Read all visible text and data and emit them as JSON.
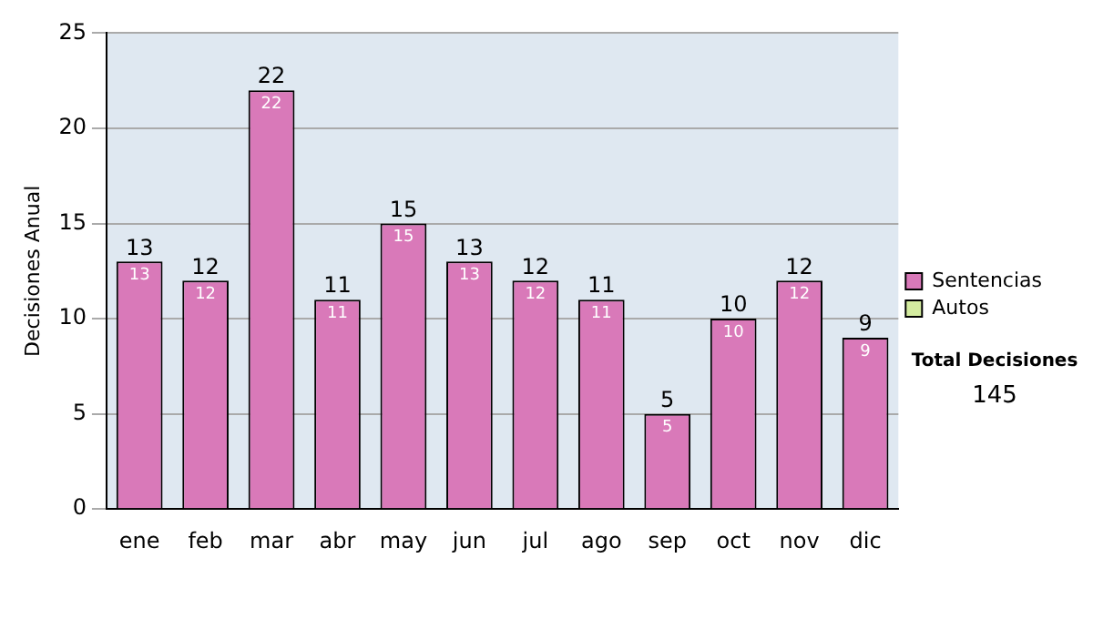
{
  "chart_data": {
    "type": "bar",
    "ylabel": "Decisiones Anual",
    "categories": [
      "ene",
      "feb",
      "mar",
      "abr",
      "may",
      "jun",
      "jul",
      "ago",
      "sep",
      "oct",
      "nov",
      "dic"
    ],
    "series": [
      {
        "name": "Sentencias",
        "color": "#d979b9",
        "values": [
          13,
          12,
          22,
          11,
          15,
          13,
          12,
          11,
          5,
          10,
          12,
          9
        ]
      },
      {
        "name": "Autos",
        "color": "#d4eca0",
        "values": [
          null,
          null,
          null,
          null,
          null,
          null,
          null,
          null,
          null,
          null,
          null,
          null
        ]
      }
    ],
    "ylim": [
      0,
      25
    ],
    "yticks": [
      0,
      5,
      10,
      15,
      20,
      25
    ],
    "grid": "y",
    "legend": "right",
    "data_labels": true,
    "annotations": [
      "Total Decisiones",
      "145",
      {
        "text": "13",
        "x": "ene",
        "y": 13
      },
      {
        "text": "12",
        "x": "feb",
        "y": 12
      },
      {
        "text": "22",
        "x": "mar",
        "y": 22
      },
      {
        "text": "11",
        "x": "abr",
        "y": 11
      },
      {
        "text": "15",
        "x": "may",
        "y": 15
      },
      {
        "text": "13",
        "x": "jun",
        "y": 13
      },
      {
        "text": "12",
        "x": "jul",
        "y": 12
      },
      {
        "text": "11",
        "x": "ago",
        "y": 11
      },
      {
        "text": "5",
        "x": "sep",
        "y": 5
      },
      {
        "text": "10",
        "x": "oct",
        "y": 10
      },
      {
        "text": "12",
        "x": "nov",
        "y": 12
      },
      {
        "text": "9",
        "x": "dic",
        "y": 9
      }
    ]
  }
}
